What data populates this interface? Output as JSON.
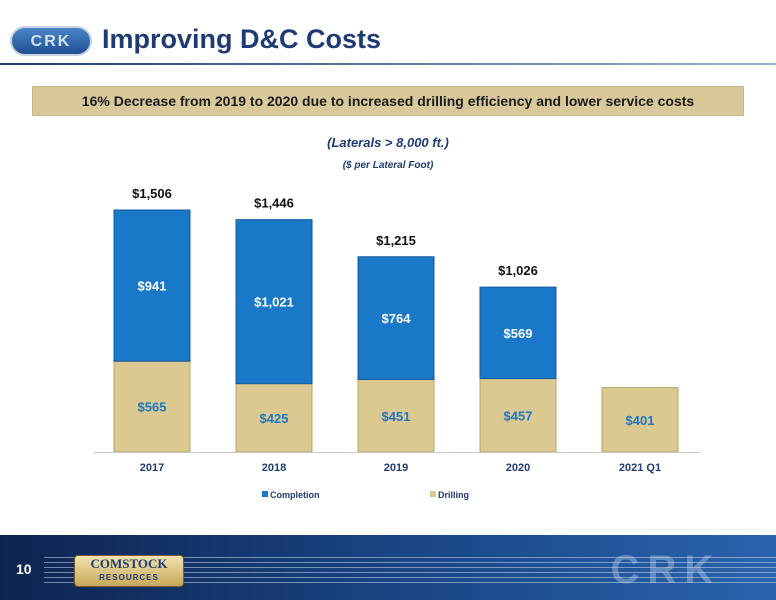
{
  "header": {
    "title": "Improving D&C Costs",
    "logo_text": "CRK"
  },
  "banner": {
    "text": "16% Decrease from 2019 to 2020 due to increased drilling efficiency and lower service costs"
  },
  "subtitles": {
    "primary": "(Laterals > 8,000 ft.)",
    "secondary": "($ per Lateral Foot)"
  },
  "footer": {
    "page_number": "10",
    "logo_line1": "COMSTOCK",
    "logo_line2": "RESOURCES",
    "watermark": "CRK"
  },
  "colors": {
    "completion": "#1a78c8",
    "drilling": "#dcc992",
    "completion_label": "#ffffff",
    "drilling_label": "#1a78c8",
    "title": "#1f3b73",
    "banner": "#d9c89a"
  },
  "chart_data": {
    "type": "bar",
    "stacked": true,
    "categories": [
      "2017",
      "2018",
      "2019",
      "2020",
      "2021 Q1"
    ],
    "series": [
      {
        "name": "Drilling",
        "values": [
          565,
          425,
          451,
          457,
          401
        ],
        "labels": [
          "$565",
          "$425",
          "$451",
          "$457",
          "$401"
        ]
      },
      {
        "name": "Completion",
        "values": [
          941,
          1021,
          764,
          569,
          0
        ],
        "labels": [
          "$941",
          "$1,021",
          "$764",
          "$569",
          ""
        ]
      }
    ],
    "totals": [
      1506,
      1446,
      1215,
      1026,
      null
    ],
    "total_labels": [
      "$1,506",
      "$1,446",
      "$1,215",
      "$1,026",
      ""
    ],
    "ylim": [
      0,
      1506
    ],
    "legend": [
      "Completion",
      "Drilling"
    ],
    "legend_position": "bottom",
    "grid": false
  }
}
